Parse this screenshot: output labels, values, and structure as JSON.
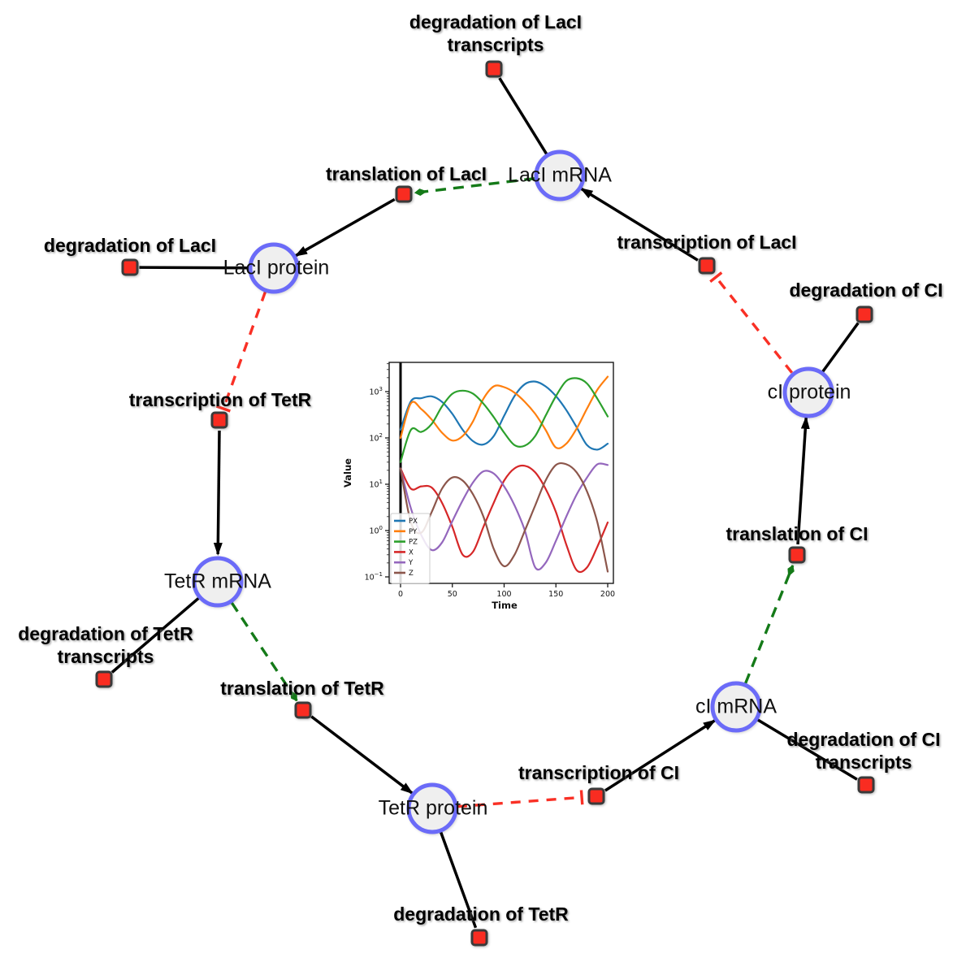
{
  "figure": {
    "background": "#ffffff"
  },
  "colors": {
    "species_fill": "#efefef",
    "species_stroke": "#6b6bf8",
    "reaction_fill": "#f92c21",
    "reaction_stroke": "#3a3a3a",
    "edge_black": "#000000",
    "edge_activation_green": "#147a18",
    "edge_inhibition_red": "#f93025"
  },
  "species": [
    {
      "label": "LacI mRNA"
    },
    {
      "label": "LacI protein"
    },
    {
      "label": "TetR mRNA"
    },
    {
      "label": "TetR protein"
    },
    {
      "label": "cI mRNA"
    },
    {
      "label": "cI protein"
    }
  ],
  "reactions": [
    {
      "lines": [
        "degradation of LacI",
        "transcripts"
      ]
    },
    {
      "lines": [
        "translation of LacI"
      ]
    },
    {
      "lines": [
        "transcription of LacI"
      ]
    },
    {
      "lines": [
        "degradation of LacI"
      ]
    },
    {
      "lines": [
        "transcription of TetR"
      ]
    },
    {
      "lines": [
        "degradation of TetR",
        "transcripts"
      ]
    },
    {
      "lines": [
        "translation of TetR"
      ]
    },
    {
      "lines": [
        "degradation of TetR"
      ]
    },
    {
      "lines": [
        "transcription of CI"
      ]
    },
    {
      "lines": [
        "degradation of CI",
        "transcripts"
      ]
    },
    {
      "lines": [
        "translation of CI"
      ]
    },
    {
      "lines": [
        "degradation of CI"
      ]
    }
  ],
  "chart_data": {
    "type": "line",
    "title": "",
    "xlabel": "Time",
    "ylabel": "Value",
    "y_scale": "log",
    "x_ticks": [
      0,
      50,
      100,
      150,
      200
    ],
    "y_tick_exponents": [
      -1,
      0,
      1,
      2,
      3
    ],
    "xlim": [
      -10,
      205
    ],
    "ylim": [
      0.063,
      4100
    ],
    "grid": false,
    "legend": [
      "PX",
      "PY",
      "PZ",
      "X",
      "Y",
      "Z"
    ],
    "legend_position": "lower left",
    "vline_at_x": 0,
    "x": [
      0,
      10,
      20,
      30,
      40,
      50,
      60,
      70,
      80,
      90,
      100,
      110,
      120,
      130,
      140,
      150,
      160,
      170,
      180,
      190,
      200
    ],
    "series": [
      {
        "name": "PX",
        "color": "#1f77b4",
        "values": [
          150,
          620,
          720,
          790,
          600,
          330,
          150,
          85,
          72,
          110,
          300,
          800,
          1450,
          1650,
          1300,
          800,
          400,
          170,
          70,
          56,
          75
        ]
      },
      {
        "name": "PY",
        "color": "#ff7f0e",
        "values": [
          100,
          560,
          420,
          250,
          130,
          88,
          110,
          230,
          700,
          1300,
          1250,
          950,
          600,
          330,
          150,
          62,
          75,
          160,
          430,
          1100,
          2100
        ]
      },
      {
        "name": "PZ",
        "color": "#2ca02c",
        "values": [
          30,
          150,
          135,
          200,
          480,
          900,
          1050,
          900,
          550,
          280,
          130,
          70,
          68,
          110,
          300,
          800,
          1700,
          1950,
          1500,
          700,
          290
        ]
      },
      {
        "name": "X",
        "color": "#d62728",
        "values": [
          22,
          8,
          9,
          8.5,
          4,
          1.2,
          0.3,
          0.35,
          1.2,
          4,
          12,
          22,
          25,
          18,
          8,
          2.5,
          0.5,
          0.14,
          0.16,
          0.45,
          1.5
        ]
      },
      {
        "name": "Y",
        "color": "#9467bd",
        "values": [
          22,
          3,
          0.8,
          0.38,
          0.55,
          1.6,
          4.5,
          11,
          19,
          17,
          9,
          3.5,
          1,
          0.16,
          0.2,
          0.6,
          2,
          6,
          14,
          27,
          26
        ]
      },
      {
        "name": "Z",
        "color": "#8c564b",
        "values": [
          22,
          1.5,
          0.9,
          2.5,
          8,
          14,
          12,
          6,
          2,
          0.4,
          0.17,
          0.3,
          1,
          3.5,
          12,
          26,
          27,
          18,
          7,
          1.5,
          0.13
        ]
      }
    ]
  }
}
